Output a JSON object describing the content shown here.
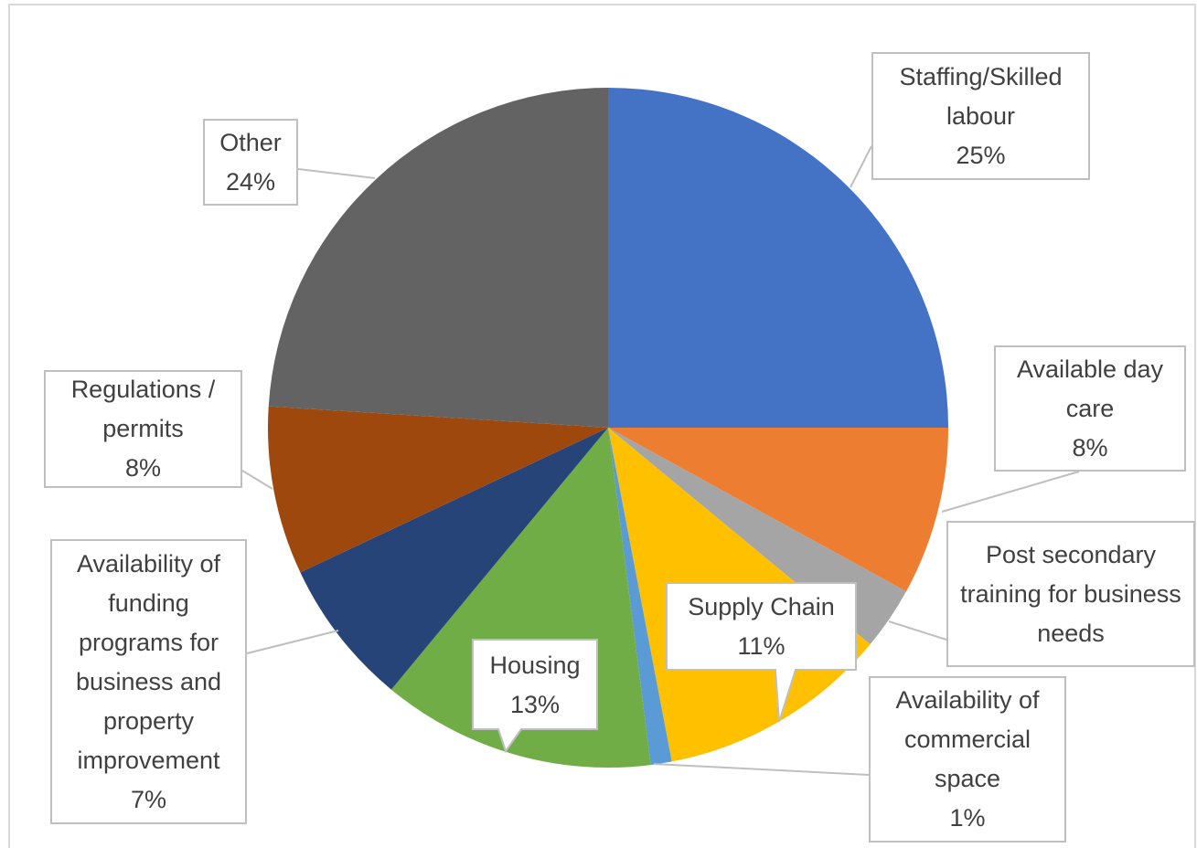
{
  "chart_data": {
    "type": "pie",
    "categories": [
      "Staffing/Skilled labour",
      "Available day care",
      "Post secondary training for business needs",
      "Supply Chain",
      "Availability of commercial space",
      "Housing",
      "Availability of funding programs for business and property improvement",
      "Regulations / permits",
      "Other"
    ],
    "values": [
      25,
      8,
      3,
      11,
      1,
      13,
      7,
      8,
      24
    ],
    "value_labels": [
      "25%",
      "8%",
      null,
      "11%",
      "1%",
      "13%",
      "7%",
      "8%",
      "24%"
    ],
    "colors": [
      "#4472c4",
      "#ed7d31",
      "#a5a5a5",
      "#ffc000",
      "#5b9bd5",
      "#70ad47",
      "#264478",
      "#9e480e",
      "#636363"
    ]
  }
}
